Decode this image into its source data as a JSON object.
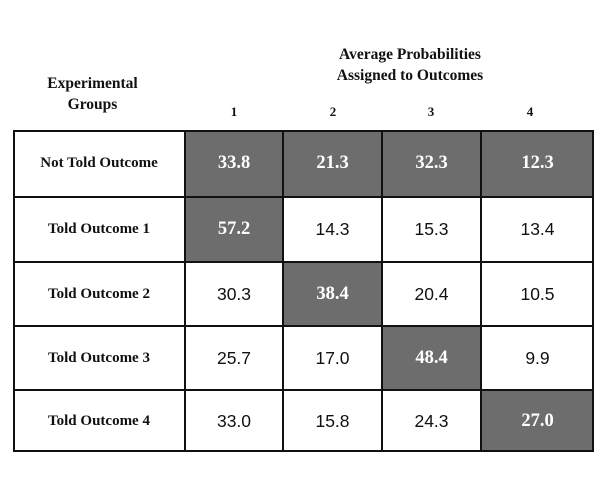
{
  "chart_data": {
    "type": "table",
    "column_group_title_line1": "Average Probabilities",
    "column_group_title_line2": "Assigned to Outcomes",
    "row_group_title_line1": "Experimental",
    "row_group_title_line2": "Groups",
    "columns": [
      "1",
      "2",
      "3",
      "4"
    ],
    "rows": [
      {
        "label": "Not Told Outcome",
        "values": [
          "33.8",
          "21.3",
          "32.3",
          "12.3"
        ],
        "highlight": [
          0,
          1,
          2,
          3
        ]
      },
      {
        "label": "Told Outcome 1",
        "values": [
          "57.2",
          "14.3",
          "15.3",
          "13.4"
        ],
        "highlight": [
          0
        ]
      },
      {
        "label": "Told Outcome 2",
        "values": [
          "30.3",
          "38.4",
          "20.4",
          "10.5"
        ],
        "highlight": [
          1
        ]
      },
      {
        "label": "Told Outcome 3",
        "values": [
          "25.7",
          "17.0",
          "48.4",
          "9.9"
        ],
        "highlight": [
          2
        ]
      },
      {
        "label": "Told Outcome 4",
        "values": [
          "33.0",
          "15.8",
          "24.3",
          "27.0"
        ],
        "highlight": [
          3
        ]
      }
    ],
    "highlight_color": "#6d6d6d"
  }
}
